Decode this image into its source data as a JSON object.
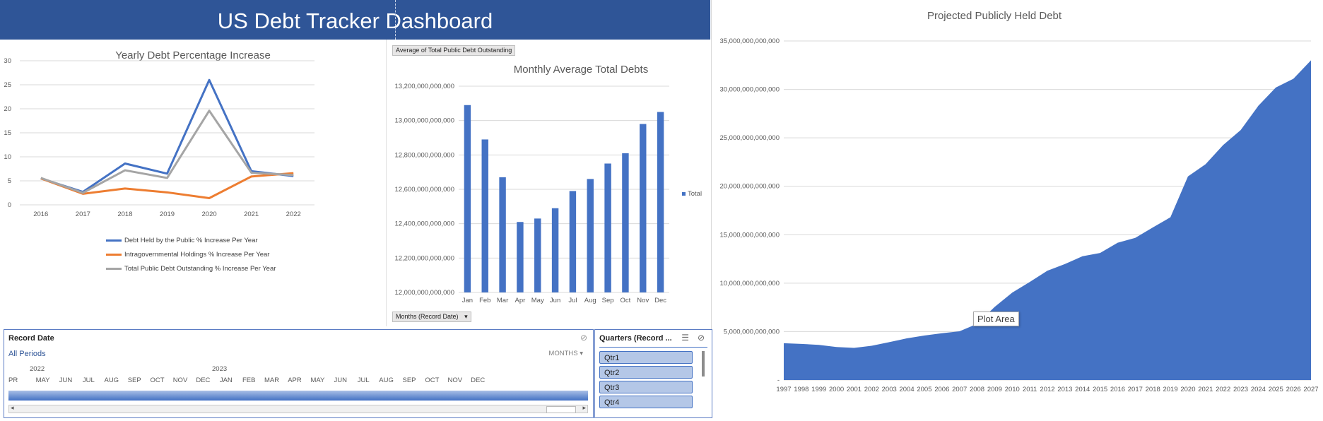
{
  "dashboard": {
    "title": "US Debt Tracker Dashboard"
  },
  "colors": {
    "banner": "#2f5597",
    "blue": "#4472c4",
    "orange": "#ed7d31",
    "gray": "#a5a5a5"
  },
  "line_chart": {
    "chart_data": {
      "type": "line",
      "title": "Yearly Debt Percentage Increase",
      "categories": [
        "2016",
        "2017",
        "2018",
        "2019",
        "2020",
        "2021",
        "2022"
      ],
      "ylim": [
        0,
        30
      ],
      "yticks": [
        "0",
        "5",
        "10",
        "15",
        "20",
        "25",
        "30"
      ],
      "series": [
        {
          "name": "Debt Held by the Public % Increase Per Year",
          "color": "#4472c4",
          "values": [
            5.5,
            2.7,
            8.6,
            6.5,
            26.0,
            7.0,
            6.0
          ]
        },
        {
          "name": "Intragovernmental Holdings % Increase Per Year",
          "color": "#ed7d31",
          "values": [
            5.5,
            2.3,
            3.4,
            2.6,
            1.4,
            5.9,
            6.6
          ]
        },
        {
          "name": "Total Public Debt Outstanding % Increase Per Year",
          "color": "#a5a5a5",
          "values": [
            5.6,
            2.5,
            7.2,
            5.6,
            19.6,
            6.7,
            6.2
          ]
        }
      ],
      "legend": "bottom"
    }
  },
  "bar_chart": {
    "field_button": "Average of Total Public Debt Outstanding",
    "axis_button": "Months (Record Date)",
    "chart_data": {
      "type": "bar",
      "title": "Monthly Average Total Debts",
      "categories": [
        "Jan",
        "Feb",
        "Mar",
        "Apr",
        "May",
        "Jun",
        "Jul",
        "Aug",
        "Sep",
        "Oct",
        "Nov",
        "Dec"
      ],
      "ylim": [
        12000000000000,
        13200000000000
      ],
      "yticks": [
        "12,000,000,000,000",
        "12,200,000,000,000",
        "12,400,000,000,000",
        "12,600,000,000,000",
        "12,800,000,000,000",
        "13,000,000,000,000",
        "13,200,000,000,000"
      ],
      "series": [
        {
          "name": "Total",
          "color": "#4472c4",
          "values": [
            13090000000000,
            12890000000000,
            12670000000000,
            12410000000000,
            12430000000000,
            12490000000000,
            12590000000000,
            12660000000000,
            12750000000000,
            12810000000000,
            12980000000000,
            13050000000000
          ]
        }
      ],
      "legend": "right"
    }
  },
  "area_chart": {
    "tooltip": "Plot Area",
    "chart_data": {
      "type": "area",
      "title": "Projected Publicly Held Debt",
      "x": [
        "1997",
        "1998",
        "1999",
        "2000",
        "2001",
        "2002",
        "2003",
        "2004",
        "2005",
        "2006",
        "2007",
        "2008",
        "2009",
        "2010",
        "2011",
        "2012",
        "2013",
        "2014",
        "2015",
        "2016",
        "2017",
        "2018",
        "2019",
        "2020",
        "2021",
        "2022",
        "2023",
        "2024",
        "2025",
        "2026",
        "2027"
      ],
      "values": [
        3800000000000,
        3730000000000,
        3630000000000,
        3410000000000,
        3320000000000,
        3540000000000,
        3910000000000,
        4300000000000,
        4590000000000,
        4830000000000,
        5030000000000,
        5800000000000,
        7550000000000,
        9020000000000,
        10130000000000,
        11280000000000,
        11980000000000,
        12780000000000,
        13120000000000,
        14170000000000,
        14670000000000,
        15750000000000,
        16800000000000,
        21020000000000,
        22280000000000,
        24250000000000,
        25800000000000,
        28300000000000,
        30200000000000,
        31100000000000,
        33000000000000
      ],
      "ylim": [
        0,
        35000000000000
      ],
      "yticks": [
        "-",
        "5,000,000,000,000",
        "10,000,000,000,000",
        "15,000,000,000,000",
        "20,000,000,000,000",
        "25,000,000,000,000",
        "30,000,000,000,000",
        "35,000,000,000,000"
      ],
      "color": "#4472c4"
    }
  },
  "timeline": {
    "title": "Record Date",
    "all_periods": "All Periods",
    "level": "MONTHS",
    "years": [
      "2022",
      "2023"
    ],
    "months": [
      "PR",
      "MAY",
      "JUN",
      "JUL",
      "AUG",
      "SEP",
      "OCT",
      "NOV",
      "DEC",
      "JAN",
      "FEB",
      "MAR",
      "APR",
      "MAY",
      "JUN",
      "JUL",
      "AUG",
      "SEP",
      "OCT",
      "NOV",
      "DEC"
    ]
  },
  "quarters": {
    "title": "Quarters (Record ...",
    "items": [
      "Qtr1",
      "Qtr2",
      "Qtr3",
      "Qtr4"
    ]
  }
}
